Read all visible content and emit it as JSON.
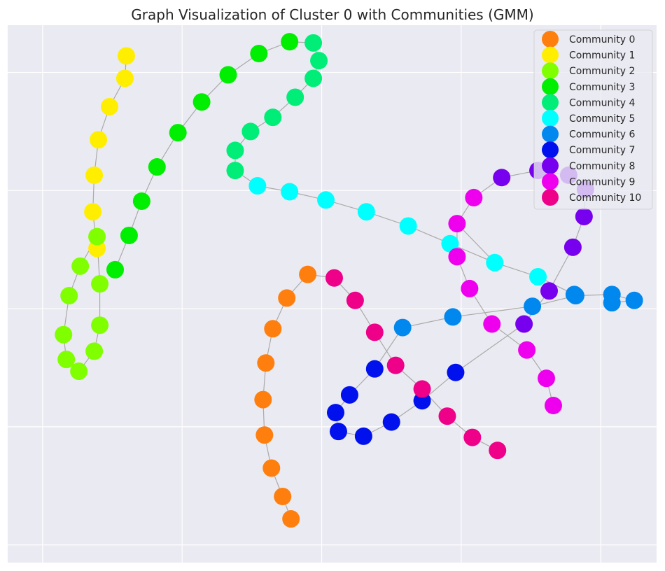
{
  "chart_data": {
    "type": "scatter",
    "title": "Graph Visualization of Cluster 0 with Communities (GMM)",
    "xlabel": "",
    "ylabel": "",
    "xlim": [
      -0.25,
      4.4
    ],
    "ylim": [
      -4.15,
      0.4
    ],
    "grid": true,
    "legend_position": "top-right",
    "series": [
      {
        "name": "Community 0",
        "color": "#ff7f0e",
        "points": [
          [
            1.9,
            -1.71
          ],
          [
            1.75,
            -1.91
          ],
          [
            1.65,
            -2.17
          ],
          [
            1.6,
            -2.46
          ],
          [
            1.58,
            -2.77
          ],
          [
            1.59,
            -3.07
          ],
          [
            1.64,
            -3.35
          ],
          [
            1.72,
            -3.59
          ],
          [
            1.78,
            -3.78
          ]
        ]
      },
      {
        "name": "Community 1",
        "color": "#ffee00",
        "points": [
          [
            0.6,
            0.14
          ],
          [
            0.59,
            -0.05
          ],
          [
            0.48,
            -0.29
          ],
          [
            0.4,
            -0.57
          ],
          [
            0.37,
            -0.87
          ],
          [
            0.36,
            -1.18
          ],
          [
            0.39,
            -1.49
          ]
        ]
      },
      {
        "name": "Community 2",
        "color": "#80ff00",
        "points": [
          [
            0.39,
            -1.39
          ],
          [
            0.27,
            -1.64
          ],
          [
            0.41,
            -1.79
          ],
          [
            0.19,
            -1.89
          ],
          [
            0.41,
            -2.14
          ],
          [
            0.15,
            -2.22
          ],
          [
            0.37,
            -2.36
          ],
          [
            0.17,
            -2.43
          ],
          [
            0.26,
            -2.53
          ]
        ]
      },
      {
        "name": "Community 3",
        "color": "#00ee00",
        "points": [
          [
            0.52,
            -1.67
          ],
          [
            0.62,
            -1.38
          ],
          [
            0.71,
            -1.09
          ],
          [
            0.82,
            -0.8
          ],
          [
            0.97,
            -0.51
          ],
          [
            1.14,
            -0.25
          ],
          [
            1.33,
            -0.02
          ],
          [
            1.55,
            0.16
          ],
          [
            1.77,
            0.26
          ]
        ]
      },
      {
        "name": "Community 4",
        "color": "#00ee77",
        "points": [
          [
            1.94,
            0.25
          ],
          [
            1.98,
            0.1
          ],
          [
            1.94,
            -0.05
          ],
          [
            1.81,
            -0.21
          ],
          [
            1.65,
            -0.38
          ],
          [
            1.49,
            -0.5
          ],
          [
            1.38,
            -0.66
          ],
          [
            1.38,
            -0.83
          ]
        ]
      },
      {
        "name": "Community 5",
        "color": "#00ffff",
        "points": [
          [
            1.54,
            -0.96
          ],
          [
            1.77,
            -1.01
          ],
          [
            2.03,
            -1.08
          ],
          [
            2.32,
            -1.18
          ],
          [
            2.62,
            -1.3
          ],
          [
            2.92,
            -1.45
          ],
          [
            3.24,
            -1.61
          ],
          [
            3.55,
            -1.73
          ]
        ]
      },
      {
        "name": "Community 6",
        "color": "#0088ee",
        "points": [
          [
            3.81,
            -1.88
          ],
          [
            3.82,
            -1.89
          ],
          [
            4.08,
            -1.88
          ],
          [
            4.24,
            -1.93
          ],
          [
            4.08,
            -1.95
          ],
          [
            3.51,
            -1.98
          ],
          [
            2.94,
            -2.07
          ],
          [
            2.58,
            -2.16
          ]
        ]
      },
      {
        "name": "Community 7",
        "color": "#0011ee",
        "points": [
          [
            2.38,
            -2.51
          ],
          [
            2.2,
            -2.73
          ],
          [
            2.1,
            -2.88
          ],
          [
            2.12,
            -3.04
          ],
          [
            2.3,
            -3.08
          ],
          [
            2.5,
            -2.96
          ],
          [
            2.72,
            -2.78
          ],
          [
            2.96,
            -2.54
          ]
        ]
      },
      {
        "name": "Community 8",
        "color": "#7700ee",
        "points": [
          [
            3.29,
            -0.89
          ],
          [
            3.55,
            -0.83
          ],
          [
            3.77,
            -0.87
          ],
          [
            3.89,
            -0.99
          ],
          [
            3.88,
            -1.22
          ],
          [
            3.8,
            -1.48
          ],
          [
            3.63,
            -1.85
          ],
          [
            3.45,
            -2.13
          ]
        ]
      },
      {
        "name": "Community 9",
        "color": "#ee00ee",
        "points": [
          [
            3.09,
            -1.06
          ],
          [
            2.97,
            -1.28
          ],
          [
            2.97,
            -1.56
          ],
          [
            3.06,
            -1.83
          ],
          [
            3.22,
            -2.13
          ],
          [
            3.47,
            -2.35
          ],
          [
            3.61,
            -2.59
          ],
          [
            3.66,
            -2.82
          ]
        ]
      },
      {
        "name": "Community 10",
        "color": "#ee0088",
        "points": [
          [
            2.09,
            -1.74
          ],
          [
            2.24,
            -1.93
          ],
          [
            2.38,
            -2.2
          ],
          [
            2.53,
            -2.48
          ],
          [
            2.72,
            -2.68
          ],
          [
            2.9,
            -2.91
          ],
          [
            3.08,
            -3.09
          ],
          [
            3.26,
            -3.2
          ]
        ]
      }
    ],
    "edges": [
      [
        0,
        0,
        0,
        1
      ],
      [
        0,
        1,
        0,
        2
      ],
      [
        0,
        2,
        0,
        3
      ],
      [
        0,
        3,
        0,
        4
      ],
      [
        0,
        4,
        0,
        5
      ],
      [
        0,
        5,
        0,
        6
      ],
      [
        0,
        6,
        0,
        7
      ],
      [
        0,
        7,
        0,
        8
      ],
      [
        1,
        0,
        1,
        1
      ],
      [
        1,
        1,
        1,
        2
      ],
      [
        1,
        2,
        1,
        3
      ],
      [
        1,
        3,
        1,
        4
      ],
      [
        1,
        4,
        1,
        5
      ],
      [
        1,
        5,
        1,
        6
      ],
      [
        1,
        6,
        2,
        0
      ],
      [
        2,
        0,
        2,
        1
      ],
      [
        2,
        1,
        2,
        3
      ],
      [
        2,
        3,
        2,
        5
      ],
      [
        2,
        5,
        2,
        7
      ],
      [
        2,
        7,
        2,
        8
      ],
      [
        2,
        8,
        2,
        6
      ],
      [
        2,
        6,
        2,
        4
      ],
      [
        2,
        4,
        2,
        2
      ],
      [
        2,
        2,
        2,
        0
      ],
      [
        3,
        0,
        3,
        1
      ],
      [
        3,
        1,
        3,
        2
      ],
      [
        3,
        2,
        3,
        3
      ],
      [
        3,
        3,
        3,
        4
      ],
      [
        3,
        4,
        3,
        5
      ],
      [
        3,
        5,
        3,
        6
      ],
      [
        3,
        6,
        3,
        7
      ],
      [
        3,
        7,
        3,
        8
      ],
      [
        3,
        8,
        4,
        0
      ],
      [
        4,
        0,
        4,
        1
      ],
      [
        4,
        1,
        4,
        2
      ],
      [
        4,
        2,
        4,
        3
      ],
      [
        4,
        3,
        4,
        4
      ],
      [
        4,
        4,
        4,
        5
      ],
      [
        4,
        5,
        4,
        6
      ],
      [
        4,
        6,
        4,
        7
      ],
      [
        4,
        7,
        5,
        0
      ],
      [
        5,
        0,
        5,
        1
      ],
      [
        5,
        1,
        5,
        2
      ],
      [
        5,
        2,
        5,
        3
      ],
      [
        5,
        3,
        5,
        4
      ],
      [
        5,
        4,
        5,
        5
      ],
      [
        5,
        5,
        5,
        6
      ],
      [
        5,
        6,
        5,
        7
      ],
      [
        5,
        7,
        6,
        0
      ],
      [
        6,
        0,
        6,
        1
      ],
      [
        6,
        1,
        6,
        2
      ],
      [
        6,
        2,
        6,
        3
      ],
      [
        6,
        3,
        6,
        4
      ],
      [
        6,
        1,
        6,
        5
      ],
      [
        6,
        5,
        6,
        6
      ],
      [
        6,
        6,
        6,
        7
      ],
      [
        6,
        7,
        7,
        0
      ],
      [
        7,
        0,
        7,
        1
      ],
      [
        7,
        1,
        7,
        2
      ],
      [
        7,
        2,
        7,
        3
      ],
      [
        7,
        3,
        7,
        4
      ],
      [
        7,
        4,
        7,
        5
      ],
      [
        7,
        5,
        7,
        6
      ],
      [
        7,
        6,
        7,
        7
      ],
      [
        7,
        7,
        8,
        7
      ],
      [
        8,
        7,
        8,
        6
      ],
      [
        8,
        6,
        8,
        5
      ],
      [
        8,
        5,
        8,
        4
      ],
      [
        8,
        4,
        8,
        3
      ],
      [
        8,
        3,
        8,
        2
      ],
      [
        8,
        2,
        8,
        1
      ],
      [
        8,
        1,
        8,
        0
      ],
      [
        8,
        0,
        9,
        0
      ],
      [
        9,
        0,
        9,
        1
      ],
      [
        9,
        1,
        9,
        2
      ],
      [
        9,
        2,
        9,
        3
      ],
      [
        9,
        3,
        9,
        4
      ],
      [
        9,
        4,
        9,
        5
      ],
      [
        9,
        5,
        9,
        6
      ],
      [
        9,
        6,
        9,
        7
      ],
      [
        10,
        0,
        10,
        1
      ],
      [
        10,
        1,
        10,
        2
      ],
      [
        10,
        2,
        10,
        3
      ],
      [
        10,
        3,
        10,
        4
      ],
      [
        10,
        4,
        10,
        5
      ],
      [
        10,
        5,
        10,
        6
      ],
      [
        10,
        6,
        10,
        7
      ],
      [
        0,
        0,
        10,
        0
      ],
      [
        9,
        1,
        5,
        6
      ]
    ]
  }
}
